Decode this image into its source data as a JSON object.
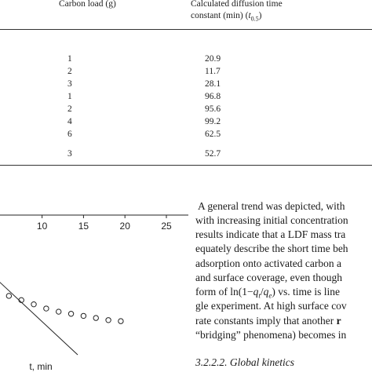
{
  "table": {
    "col_carbon_header": "Carbon load (g)",
    "col_diffusion_header_line1": "Calculated diffusion time",
    "col_diffusion_header_line2_prefix": "constant (min) (",
    "col_diffusion_header_symbol": "t",
    "col_diffusion_header_subscript": "0.5",
    "col_diffusion_header_suffix": ")",
    "rows": [
      {
        "carbon_load": "1",
        "diffusion_time": "20.9"
      },
      {
        "carbon_load": "2",
        "diffusion_time": "11.7"
      },
      {
        "carbon_load": "3",
        "diffusion_time": "28.1"
      },
      {
        "carbon_load": "1",
        "diffusion_time": "96.8"
      },
      {
        "carbon_load": "2",
        "diffusion_time": "95.6"
      },
      {
        "carbon_load": "4",
        "diffusion_time": "99.2"
      },
      {
        "carbon_load": "6",
        "diffusion_time": "62.5"
      },
      {
        "carbon_load": "3",
        "diffusion_time": "52.7"
      }
    ]
  },
  "chart_data": {
    "type": "scatter",
    "title": "",
    "xlabel": "t, min",
    "ylabel": "",
    "xlim": [
      0,
      25
    ],
    "x_ticks": [
      "10",
      "15",
      "20",
      "25"
    ],
    "grid": false,
    "series": [
      {
        "kind": "points",
        "marker": "open-circle",
        "x": [
          0,
          1.5,
          3,
          4.5,
          6,
          7.5,
          9,
          10.5,
          12,
          13.5,
          15,
          16.5,
          18,
          19.5
        ],
        "y": [
          0.78,
          0.72,
          0.66,
          0.61,
          0.56,
          0.52,
          0.48,
          0.44,
          0.41,
          0.39,
          0.37,
          0.35,
          0.33,
          0.32
        ]
      },
      {
        "kind": "fitted-line",
        "x": [
          0,
          14.3
        ],
        "y": [
          1.05,
          0.0
        ]
      }
    ]
  },
  "text": {
    "lines": [
      "A general trend was depicted, with",
      "with increasing initial concentration",
      "results indicate that a LDF mass tra",
      "equately describe the short time beh",
      "adsorption onto activated carbon a",
      "and surface coverage, even though",
      "vs. time is line",
      "gle experiment. At high surface cov",
      "rate constants imply that another",
      "“bridging” phenomena) becomes in"
    ],
    "form_of_prefix": "form of ln(1",
    "form_of_q": "q",
    "form_of_t": "t",
    "form_of_slash": "/",
    "form_of_e": "e",
    "bold_tail_letter": "r",
    "subheading": "3.2.2.2. Global kinetics"
  }
}
